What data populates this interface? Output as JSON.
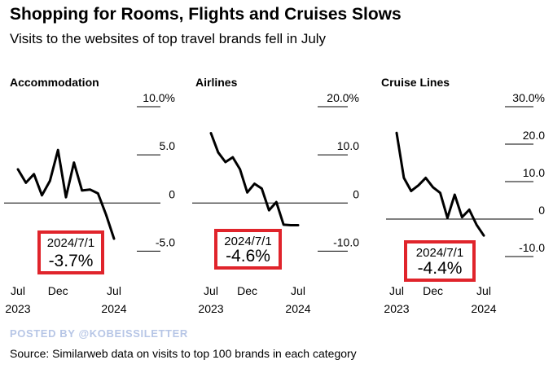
{
  "title": "Shopping for Rooms, Flights and Cruises Slows",
  "subtitle": "Visits to the websites of top travel brands fell in July",
  "watermark": "POSTED BY @KOBEISSILETTER",
  "source": "Source: Similarweb data on visits to top 100 brands in each category",
  "colors": {
    "line": "#000000",
    "annotation_border": "#e0242b",
    "gridline": "#000000",
    "watermark": "#b7c6e6"
  },
  "chart_data": [
    {
      "type": "line",
      "title": "Accommodation",
      "x": [
        "2023-07",
        "2023-08",
        "2023-09",
        "2023-10",
        "2023-11",
        "2023-12",
        "2024-01",
        "2024-02",
        "2024-03",
        "2024-04",
        "2024-05",
        "2024-06",
        "2024-07"
      ],
      "series": [
        {
          "values": [
            3.5,
            2.1,
            3.0,
            0.8,
            2.3,
            5.5,
            0.6,
            4.2,
            1.3,
            1.4,
            1.0,
            -1.2,
            -3.7
          ]
        }
      ],
      "ylim": [
        -7.5,
        10
      ],
      "yticks": [
        {
          "value": 10,
          "label": "10.0%"
        },
        {
          "value": 5,
          "label": "5.0"
        },
        {
          "value": 0,
          "label": "0"
        },
        {
          "value": -5,
          "label": "-5.0"
        }
      ],
      "xticks": [
        {
          "x": "2023-07",
          "label": "Jul",
          "sublabel": "2023"
        },
        {
          "x": "2023-12",
          "label": "Dec",
          "sublabel": ""
        },
        {
          "x": "2024-07",
          "label": "Jul",
          "sublabel": "2024"
        }
      ],
      "annotation": {
        "date": "2024/7/1",
        "value": "-3.7%"
      }
    },
    {
      "type": "line",
      "title": "Airlines",
      "x": [
        "2023-07",
        "2023-08",
        "2023-09",
        "2023-10",
        "2023-11",
        "2023-12",
        "2024-01",
        "2024-02",
        "2024-03",
        "2024-04",
        "2024-05",
        "2024-06",
        "2024-07"
      ],
      "series": [
        {
          "values": [
            14.5,
            10.5,
            8.5,
            9.5,
            7.0,
            2.2,
            4.0,
            3.0,
            -1.5,
            0.2,
            -4.5,
            -4.6,
            -4.6
          ]
        }
      ],
      "ylim": [
        -15,
        20
      ],
      "yticks": [
        {
          "value": 20,
          "label": "20.0%"
        },
        {
          "value": 10,
          "label": "10.0"
        },
        {
          "value": 0,
          "label": "0"
        },
        {
          "value": -10,
          "label": "-10.0"
        }
      ],
      "xticks": [
        {
          "x": "2023-07",
          "label": "Jul",
          "sublabel": "2023"
        },
        {
          "x": "2023-12",
          "label": "Dec",
          "sublabel": ""
        },
        {
          "x": "2024-07",
          "label": "Jul",
          "sublabel": "2024"
        }
      ],
      "annotation": {
        "date": "2024/7/1",
        "value": "-4.6%"
      }
    },
    {
      "type": "line",
      "title": "Cruise Lines",
      "x": [
        "2023-07",
        "2023-08",
        "2023-09",
        "2023-10",
        "2023-11",
        "2023-12",
        "2024-01",
        "2024-02",
        "2024-03",
        "2024-04",
        "2024-05",
        "2024-06",
        "2024-07"
      ],
      "series": [
        {
          "values": [
            23.0,
            11.0,
            7.5,
            9.0,
            11.0,
            8.5,
            7.0,
            0.3,
            6.5,
            0.5,
            2.5,
            -1.5,
            -4.4
          ]
        }
      ],
      "ylim": [
        -15,
        30
      ],
      "yticks": [
        {
          "value": 30,
          "label": "30.0%"
        },
        {
          "value": 20,
          "label": "20.0"
        },
        {
          "value": 10,
          "label": "10.0"
        },
        {
          "value": 0,
          "label": "0"
        },
        {
          "value": -10,
          "label": "-10.0"
        }
      ],
      "xticks": [
        {
          "x": "2023-07",
          "label": "Jul",
          "sublabel": "2023"
        },
        {
          "x": "2023-12",
          "label": "Dec",
          "sublabel": ""
        },
        {
          "x": "2024-07",
          "label": "Jul",
          "sublabel": "2024"
        }
      ],
      "annotation": {
        "date": "2024/7/1",
        "value": "-4.4%"
      }
    }
  ]
}
